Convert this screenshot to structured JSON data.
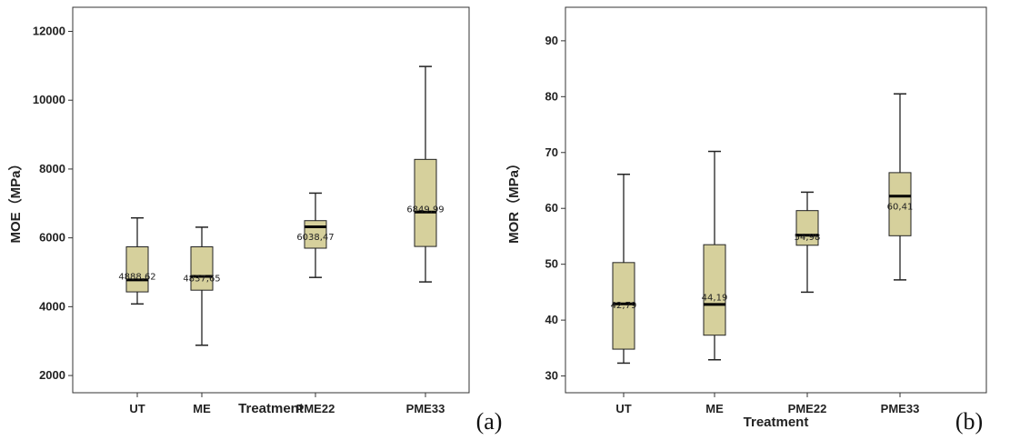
{
  "chart_data": [
    {
      "type": "box",
      "panel_label": "(a)",
      "xlabel": "Treatment",
      "ylabel": "MOE（MPa）",
      "ylim": [
        1500,
        12700
      ],
      "yticks": [
        2000,
        4000,
        6000,
        8000,
        10000,
        12000
      ],
      "box_color": "#d6d09c",
      "categories": [
        "UT",
        "ME",
        "PME22",
        "PME33"
      ],
      "series": [
        {
          "category": "UT",
          "min": 4080,
          "q1": 4430,
          "median": 4780,
          "q3": 5740,
          "max": 6580,
          "mean_label": "4888,62",
          "mean": 4888.62
        },
        {
          "category": "ME",
          "min": 2880,
          "q1": 4480,
          "median": 4880,
          "q3": 5740,
          "max": 6310,
          "mean_label": "4837,65",
          "mean": 4837.65
        },
        {
          "category": "PME22",
          "min": 4850,
          "q1": 5700,
          "median": 6320,
          "q3": 6500,
          "max": 7300,
          "mean_label": "6038,47",
          "mean": 6038.47
        },
        {
          "category": "PME33",
          "min": 4720,
          "q1": 5750,
          "median": 6750,
          "q3": 8280,
          "max": 10980,
          "mean_label": "6849,99",
          "mean": 6849.99
        }
      ]
    },
    {
      "type": "box",
      "panel_label": "(b)",
      "xlabel": "Treatment",
      "ylabel": "MOR（MPa）",
      "ylim": [
        27,
        96
      ],
      "yticks": [
        30,
        40,
        50,
        60,
        70,
        80,
        90
      ],
      "box_color": "#d6d09c",
      "categories": [
        "UT",
        "ME",
        "PME22",
        "PME33"
      ],
      "series": [
        {
          "category": "UT",
          "min": 32.3,
          "q1": 34.8,
          "median": 42.9,
          "q3": 50.3,
          "max": 66.1,
          "mean_label": "42,79",
          "mean": 42.79
        },
        {
          "category": "ME",
          "min": 32.9,
          "q1": 37.3,
          "median": 42.8,
          "q3": 53.5,
          "max": 70.2,
          "mean_label": "44,19",
          "mean": 44.19
        },
        {
          "category": "PME22",
          "min": 45.0,
          "q1": 53.4,
          "median": 55.2,
          "q3": 59.6,
          "max": 62.9,
          "mean_label": "54,98",
          "mean": 54.98
        },
        {
          "category": "PME33",
          "min": 47.2,
          "q1": 55.1,
          "median": 62.2,
          "q3": 66.4,
          "max": 80.5,
          "mean_label": "60,41",
          "mean": 60.41
        }
      ]
    }
  ]
}
